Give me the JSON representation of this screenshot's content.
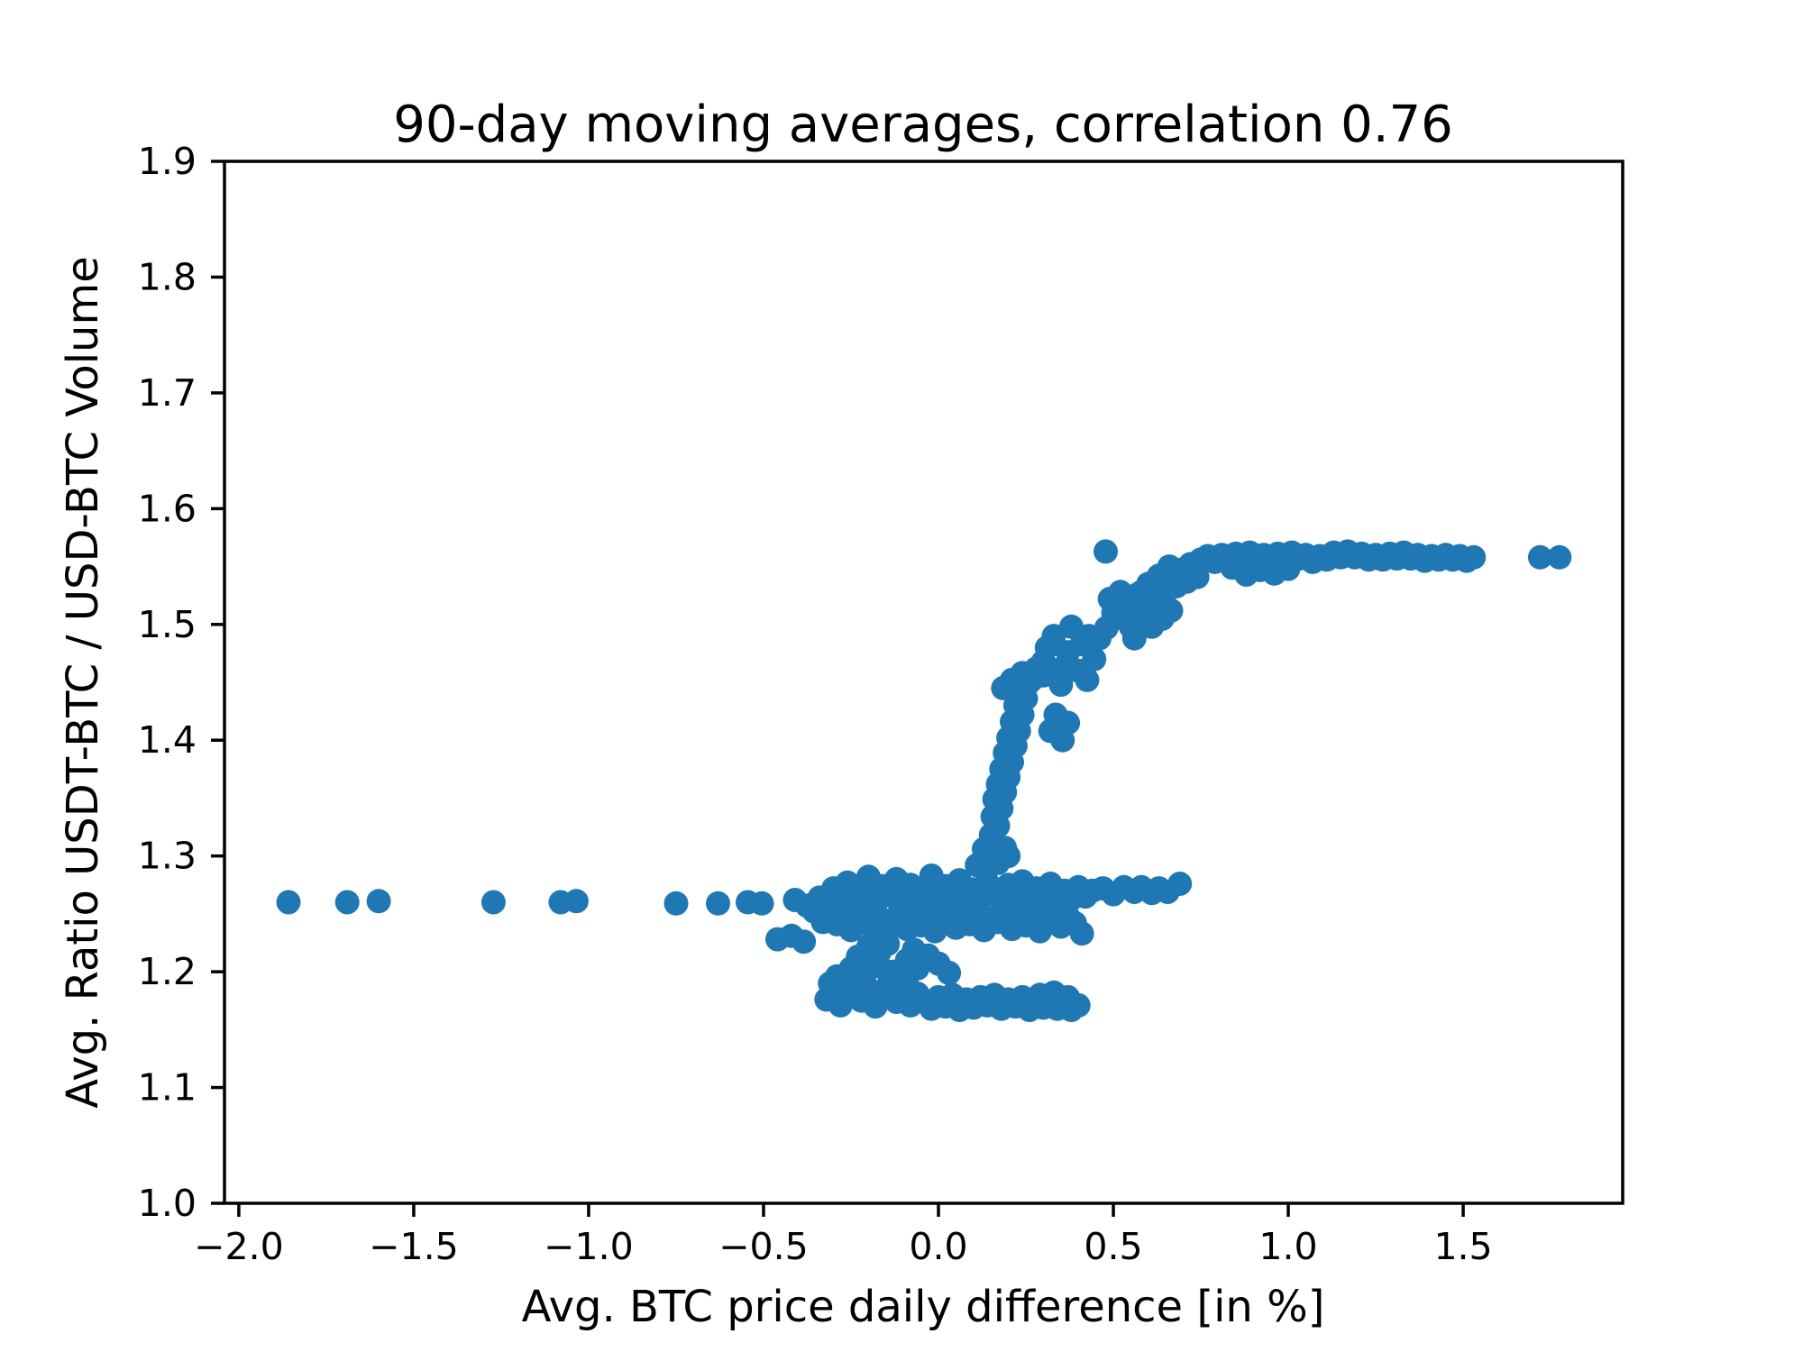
{
  "chart_data": {
    "type": "scatter",
    "title": "90-day moving averages, correlation 0.76",
    "xlabel": "Avg. BTC price daily difference [in %]",
    "ylabel": "Avg. Ratio USDT-BTC / USD-BTC Volume",
    "xlim": [
      -2.041,
      1.956
    ],
    "ylim": [
      1.0,
      1.9
    ],
    "grid": false,
    "legend_position": "none",
    "marker_color": "#1f77b4",
    "marker_radius_px": 13.5,
    "background_color": "#ffffff",
    "axis_color": "#000000",
    "xticks": {
      "values": [
        -2.0,
        -1.5,
        -1.0,
        -0.5,
        0.0,
        0.5,
        1.0,
        1.5
      ],
      "labels": [
        "−2.0",
        "−1.5",
        "−1.0",
        "−0.5",
        "0.0",
        "0.5",
        "1.0",
        "1.5"
      ]
    },
    "yticks": {
      "values": [
        1.0,
        1.1,
        1.2,
        1.3,
        1.4,
        1.5,
        1.6,
        1.7,
        1.8,
        1.9
      ],
      "labels": [
        "1.0",
        "1.1",
        "1.2",
        "1.3",
        "1.4",
        "1.5",
        "1.6",
        "1.7",
        "1.8",
        "1.9"
      ]
    },
    "points": [
      [
        -1.858,
        1.26
      ],
      [
        -1.69,
        1.26
      ],
      [
        -1.6,
        1.261
      ],
      [
        -1.272,
        1.26
      ],
      [
        -1.08,
        1.26
      ],
      [
        -1.035,
        1.261
      ],
      [
        -0.75,
        1.259
      ],
      [
        -0.63,
        1.259
      ],
      [
        -0.545,
        1.26
      ],
      [
        -0.505,
        1.259
      ],
      [
        -0.46,
        1.228
      ],
      [
        -0.42,
        1.231
      ],
      [
        -0.385,
        1.226
      ],
      [
        -0.41,
        1.262
      ],
      [
        -0.375,
        1.257
      ],
      [
        -0.34,
        1.264
      ],
      [
        -0.31,
        1.254
      ],
      [
        -0.355,
        1.252
      ],
      [
        -0.33,
        1.243
      ],
      [
        -0.32,
        1.262
      ],
      [
        -0.29,
        1.268
      ],
      [
        -0.3,
        1.272
      ],
      [
        -0.28,
        1.258
      ],
      [
        -0.26,
        1.277
      ],
      [
        -0.24,
        1.263
      ],
      [
        -0.22,
        1.27
      ],
      [
        -0.2,
        1.282
      ],
      [
        -0.18,
        1.259
      ],
      [
        -0.16,
        1.274
      ],
      [
        -0.14,
        1.266
      ],
      [
        -0.12,
        1.28
      ],
      [
        -0.1,
        1.262
      ],
      [
        -0.08,
        1.275
      ],
      [
        -0.06,
        1.258
      ],
      [
        -0.04,
        1.27
      ],
      [
        -0.02,
        1.283
      ],
      [
        0.0,
        1.261
      ],
      [
        0.02,
        1.274
      ],
      [
        0.04,
        1.265
      ],
      [
        0.06,
        1.279
      ],
      [
        0.08,
        1.257
      ],
      [
        0.1,
        1.271
      ],
      [
        0.12,
        1.263
      ],
      [
        0.14,
        1.277
      ],
      [
        -0.29,
        1.241
      ],
      [
        -0.27,
        1.249
      ],
      [
        -0.25,
        1.236
      ],
      [
        -0.23,
        1.245
      ],
      [
        -0.21,
        1.251
      ],
      [
        -0.19,
        1.238
      ],
      [
        -0.17,
        1.247
      ],
      [
        -0.15,
        1.233
      ],
      [
        -0.13,
        1.244
      ],
      [
        -0.11,
        1.252
      ],
      [
        -0.09,
        1.237
      ],
      [
        -0.07,
        1.246
      ],
      [
        -0.05,
        1.24
      ],
      [
        -0.03,
        1.25
      ],
      [
        -0.01,
        1.235
      ],
      [
        0.01,
        1.244
      ],
      [
        0.03,
        1.252
      ],
      [
        0.05,
        1.238
      ],
      [
        0.07,
        1.247
      ],
      [
        0.09,
        1.241
      ],
      [
        0.11,
        1.25
      ],
      [
        0.13,
        1.236
      ],
      [
        0.15,
        1.246
      ],
      [
        0.16,
        1.27
      ],
      [
        0.18,
        1.262
      ],
      [
        0.2,
        1.275
      ],
      [
        0.22,
        1.267
      ],
      [
        0.24,
        1.278
      ],
      [
        0.26,
        1.261
      ],
      [
        0.28,
        1.272
      ],
      [
        0.3,
        1.264
      ],
      [
        0.32,
        1.276
      ],
      [
        0.34,
        1.259
      ],
      [
        0.36,
        1.27
      ],
      [
        0.38,
        1.263
      ],
      [
        0.4,
        1.273
      ],
      [
        0.42,
        1.265
      ],
      [
        0.44,
        1.27
      ],
      [
        0.17,
        1.243
      ],
      [
        0.19,
        1.251
      ],
      [
        0.21,
        1.237
      ],
      [
        0.23,
        1.247
      ],
      [
        0.25,
        1.24
      ],
      [
        0.27,
        1.25
      ],
      [
        0.29,
        1.235
      ],
      [
        0.31,
        1.245
      ],
      [
        0.33,
        1.252
      ],
      [
        0.35,
        1.239
      ],
      [
        0.37,
        1.248
      ],
      [
        0.39,
        1.242
      ],
      [
        0.41,
        1.233
      ],
      [
        0.47,
        1.272
      ],
      [
        0.5,
        1.267
      ],
      [
        0.53,
        1.273
      ],
      [
        0.56,
        1.269
      ],
      [
        0.58,
        1.273
      ],
      [
        0.61,
        1.268
      ],
      [
        0.63,
        1.272
      ],
      [
        0.655,
        1.269
      ],
      [
        0.69,
        1.276
      ],
      [
        -0.32,
        1.176
      ],
      [
        -0.3,
        1.183
      ],
      [
        -0.28,
        1.171
      ],
      [
        -0.26,
        1.18
      ],
      [
        -0.24,
        1.19
      ],
      [
        -0.22,
        1.175
      ],
      [
        -0.2,
        1.185
      ],
      [
        -0.18,
        1.17
      ],
      [
        -0.16,
        1.18
      ],
      [
        -0.14,
        1.192
      ],
      [
        -0.12,
        1.174
      ],
      [
        -0.1,
        1.184
      ],
      [
        -0.08,
        1.171
      ],
      [
        -0.06,
        1.181
      ],
      [
        -0.29,
        1.196
      ],
      [
        -0.25,
        1.203
      ],
      [
        -0.21,
        1.198
      ],
      [
        -0.17,
        1.205
      ],
      [
        -0.13,
        1.2
      ],
      [
        -0.09,
        1.195
      ],
      [
        -0.23,
        1.213
      ],
      [
        -0.2,
        1.222
      ],
      [
        -0.17,
        1.216
      ],
      [
        -0.145,
        1.224
      ],
      [
        -0.31,
        1.19
      ],
      [
        -0.04,
        1.175
      ],
      [
        -0.02,
        1.168
      ],
      [
        0.0,
        1.178
      ],
      [
        0.02,
        1.17
      ],
      [
        0.04,
        1.18
      ],
      [
        0.06,
        1.167
      ],
      [
        0.08,
        1.176
      ],
      [
        0.1,
        1.169
      ],
      [
        0.12,
        1.178
      ],
      [
        0.14,
        1.171
      ],
      [
        0.16,
        1.18
      ],
      [
        0.18,
        1.168
      ],
      [
        0.2,
        1.176
      ],
      [
        0.22,
        1.17
      ],
      [
        0.24,
        1.178
      ],
      [
        0.26,
        1.167
      ],
      [
        0.28,
        1.174
      ],
      [
        0.3,
        1.169
      ],
      [
        0.32,
        1.176
      ],
      [
        0.34,
        1.168
      ],
      [
        0.36,
        1.173
      ],
      [
        0.38,
        1.167
      ],
      [
        0.4,
        1.171
      ],
      [
        0.29,
        1.18
      ],
      [
        0.33,
        1.182
      ],
      [
        0.37,
        1.178
      ],
      [
        -0.09,
        1.21
      ],
      [
        -0.06,
        1.203
      ],
      [
        -0.03,
        1.214
      ],
      [
        0.0,
        1.207
      ],
      [
        0.03,
        1.199
      ],
      [
        -0.07,
        1.219
      ],
      [
        0.11,
        1.292
      ],
      [
        0.14,
        1.298
      ],
      [
        0.17,
        1.294
      ],
      [
        0.2,
        1.3
      ],
      [
        0.13,
        1.306
      ],
      [
        0.16,
        1.311
      ],
      [
        0.19,
        1.307
      ],
      [
        0.15,
        1.318
      ],
      [
        0.17,
        1.326
      ],
      [
        0.155,
        1.334
      ],
      [
        0.18,
        1.341
      ],
      [
        0.16,
        1.349
      ],
      [
        0.19,
        1.355
      ],
      [
        0.17,
        1.362
      ],
      [
        0.2,
        1.368
      ],
      [
        0.18,
        1.375
      ],
      [
        0.21,
        1.381
      ],
      [
        0.19,
        1.389
      ],
      [
        0.22,
        1.395
      ],
      [
        0.2,
        1.402
      ],
      [
        0.23,
        1.408
      ],
      [
        0.21,
        1.416
      ],
      [
        0.24,
        1.422
      ],
      [
        0.22,
        1.43
      ],
      [
        0.25,
        1.436
      ],
      [
        0.23,
        1.444
      ],
      [
        0.26,
        1.45
      ],
      [
        0.24,
        1.458
      ],
      [
        0.27,
        1.453
      ],
      [
        0.21,
        1.452
      ],
      [
        0.185,
        1.445
      ],
      [
        0.28,
        1.462
      ],
      [
        0.3,
        1.456
      ],
      [
        0.32,
        1.408
      ],
      [
        0.355,
        1.4
      ],
      [
        0.335,
        1.422
      ],
      [
        0.37,
        1.415
      ],
      [
        0.33,
        1.49
      ],
      [
        0.38,
        1.498
      ],
      [
        0.43,
        1.49
      ],
      [
        0.3,
        1.468
      ],
      [
        0.345,
        1.461
      ],
      [
        0.4,
        1.46
      ],
      [
        0.445,
        1.47
      ],
      [
        0.37,
        1.476
      ],
      [
        0.41,
        1.483
      ],
      [
        0.35,
        1.448
      ],
      [
        0.425,
        1.452
      ],
      [
        0.46,
        1.488
      ],
      [
        0.48,
        1.497
      ],
      [
        0.31,
        1.48
      ],
      [
        0.49,
        1.522
      ],
      [
        0.52,
        1.528
      ],
      [
        0.545,
        1.519
      ],
      [
        0.57,
        1.526
      ],
      [
        0.6,
        1.512
      ],
      [
        0.625,
        1.52
      ],
      [
        0.65,
        1.528
      ],
      [
        0.68,
        1.533
      ],
      [
        0.71,
        1.537
      ],
      [
        0.74,
        1.541
      ],
      [
        0.55,
        1.498
      ],
      [
        0.58,
        1.505
      ],
      [
        0.61,
        1.498
      ],
      [
        0.64,
        1.505
      ],
      [
        0.56,
        1.488
      ],
      [
        0.53,
        1.505
      ],
      [
        0.5,
        1.51
      ],
      [
        0.665,
        1.512
      ],
      [
        0.69,
        1.547
      ],
      [
        0.72,
        1.552
      ],
      [
        0.6,
        1.535
      ],
      [
        0.63,
        1.542
      ],
      [
        0.66,
        1.55
      ],
      [
        0.58,
        1.528
      ],
      [
        0.75,
        1.556
      ],
      [
        0.77,
        1.559
      ],
      [
        0.79,
        1.554
      ],
      [
        0.81,
        1.56
      ],
      [
        0.83,
        1.556
      ],
      [
        0.85,
        1.561
      ],
      [
        0.87,
        1.557
      ],
      [
        0.89,
        1.562
      ],
      [
        0.91,
        1.556
      ],
      [
        0.93,
        1.56
      ],
      [
        0.95,
        1.555
      ],
      [
        0.97,
        1.561
      ],
      [
        0.99,
        1.557
      ],
      [
        1.01,
        1.562
      ],
      [
        1.03,
        1.557
      ],
      [
        1.05,
        1.56
      ],
      [
        1.07,
        1.554
      ],
      [
        1.09,
        1.559
      ],
      [
        1.11,
        1.556
      ],
      [
        1.13,
        1.562
      ],
      [
        1.15,
        1.558
      ],
      [
        1.17,
        1.563
      ],
      [
        1.19,
        1.558
      ],
      [
        1.21,
        1.561
      ],
      [
        1.23,
        1.556
      ],
      [
        1.25,
        1.56
      ],
      [
        1.27,
        1.556
      ],
      [
        1.29,
        1.561
      ],
      [
        1.31,
        1.557
      ],
      [
        1.33,
        1.562
      ],
      [
        1.35,
        1.557
      ],
      [
        1.37,
        1.56
      ],
      [
        1.39,
        1.555
      ],
      [
        1.41,
        1.559
      ],
      [
        1.43,
        1.556
      ],
      [
        1.45,
        1.56
      ],
      [
        1.47,
        1.556
      ],
      [
        1.49,
        1.559
      ],
      [
        1.51,
        1.555
      ],
      [
        1.53,
        1.558
      ],
      [
        0.84,
        1.549
      ],
      [
        0.88,
        1.543
      ],
      [
        0.92,
        1.547
      ],
      [
        0.96,
        1.544
      ],
      [
        1.0,
        1.548
      ],
      [
        1.72,
        1.558
      ],
      [
        1.775,
        1.558
      ],
      [
        0.478,
        1.563
      ]
    ]
  }
}
